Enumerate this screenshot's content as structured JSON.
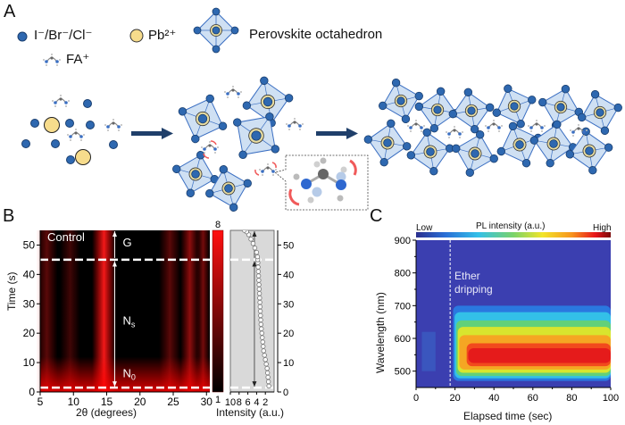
{
  "panel_a": {
    "label": "A",
    "legend": {
      "halide": {
        "text": "I⁻/Br⁻/Cl⁻",
        "color": "#2e68b0"
      },
      "lead": {
        "text": "Pb²⁺",
        "color": "#f7dc8c"
      },
      "octahedron": {
        "text": "Perovskite octahedron",
        "fill": "#cfe0f3"
      },
      "fa": {
        "text": "FA⁺"
      }
    },
    "stages": [
      "precursor ions",
      "isolated octahedra with rotating FA+",
      "corner-sharing perovskite network"
    ],
    "arrow_color": "#1f3f6a",
    "rotation_mark_color": "#f05a5a"
  },
  "panel_b": {
    "label": "B",
    "chart_data": [
      {
        "type": "heatmap",
        "title": "Control",
        "xlabel": "2θ (degrees)",
        "ylabel": "Time (s)",
        "xlim": [
          5,
          30.5
        ],
        "ylim": [
          0,
          55
        ],
        "xticks": [
          "5",
          "10",
          "15",
          "20",
          "25",
          "30"
        ],
        "yticks": [
          "0",
          "10",
          "20",
          "30",
          "40",
          "50"
        ],
        "bright_bands_2theta": [
          {
            "center": 14.6,
            "width": 1.8,
            "intensity": 0.95
          },
          {
            "center": 6.0,
            "width": 1.6,
            "intensity": 0.35
          },
          {
            "center": 9.5,
            "width": 1.5,
            "intensity": 0.25
          },
          {
            "center": 24.5,
            "width": 1.6,
            "intensity": 0.35
          },
          {
            "center": 27.5,
            "width": 1.4,
            "intensity": 0.55
          },
          {
            "center": 29.5,
            "width": 1.0,
            "intensity": 0.45
          }
        ],
        "stage_lines_time": [
          1.5,
          45
        ],
        "annotations": [
          {
            "text": "G",
            "y_range": [
              45,
              55
            ]
          },
          {
            "text": "N",
            "sub": "s",
            "y_range": [
              1.5,
              45
            ]
          },
          {
            "text": "N",
            "sub": "0",
            "y_at": 1.5
          }
        ],
        "colorbar": {
          "max_label": "8",
          "min_label": "1",
          "colors": [
            "#000000",
            "#ff0000"
          ]
        }
      },
      {
        "type": "line",
        "xlabel": "Intensity (a.u.)",
        "xlim": [
          10,
          0
        ],
        "ylim": [
          0,
          55
        ],
        "xticks": [
          "10",
          "8",
          "6",
          "4",
          "2"
        ],
        "yticks": [
          "0",
          "10",
          "20",
          "30",
          "40",
          "50"
        ],
        "x": [
          1.2,
          1.3,
          1.4,
          1.5,
          1.6,
          1.8,
          2.0,
          2.2,
          2.4,
          2.5,
          2.6,
          2.7,
          2.8,
          2.9,
          3.0,
          3.05,
          3.1,
          3.15,
          3.2,
          3.25,
          3.3,
          3.35,
          3.4,
          3.45,
          3.5,
          3.55,
          3.6,
          3.65,
          3.7,
          3.75,
          3.8,
          4.0,
          4.4,
          4.8,
          5.3,
          5.8,
          6.3,
          6.8
        ],
        "y": [
          2,
          3.5,
          5,
          6.5,
          8,
          9.5,
          11,
          12.5,
          14,
          15.5,
          17,
          18.5,
          20,
          21.5,
          23,
          24.5,
          26,
          27.5,
          29,
          30.5,
          32,
          33.5,
          35,
          36.5,
          38,
          39.5,
          41,
          42.5,
          44,
          45,
          46,
          47.5,
          49,
          50.5,
          52,
          53.5,
          54.5,
          55
        ],
        "stage_lines_time": [
          1.5,
          45
        ],
        "background": "#d9d9d9"
      }
    ]
  },
  "panel_c": {
    "label": "C",
    "chart_data": {
      "type": "heatmap",
      "title": "PL intensity (a.u.)",
      "colorbar": {
        "low_label": "Low",
        "high_label": "High",
        "colors": [
          "#2b2f8f",
          "#2a6fd6",
          "#33c0e8",
          "#7ad36a",
          "#f2e529",
          "#f7941d",
          "#e8161b",
          "#7a0a0a"
        ]
      },
      "xlabel": "Elapsed time (sec)",
      "ylabel": "Wavelength (nm)",
      "xlim": [
        0,
        100
      ],
      "ylim": [
        450,
        900
      ],
      "xticks": [
        "0",
        "20",
        "40",
        "60",
        "80",
        "100"
      ],
      "yticks": [
        "500",
        "600",
        "700",
        "800",
        "900"
      ],
      "event": {
        "x": 17.5,
        "text_lines": [
          "Ether",
          "dripping"
        ]
      },
      "emission_peak_nm": 545,
      "onset_sec": 19
    }
  }
}
